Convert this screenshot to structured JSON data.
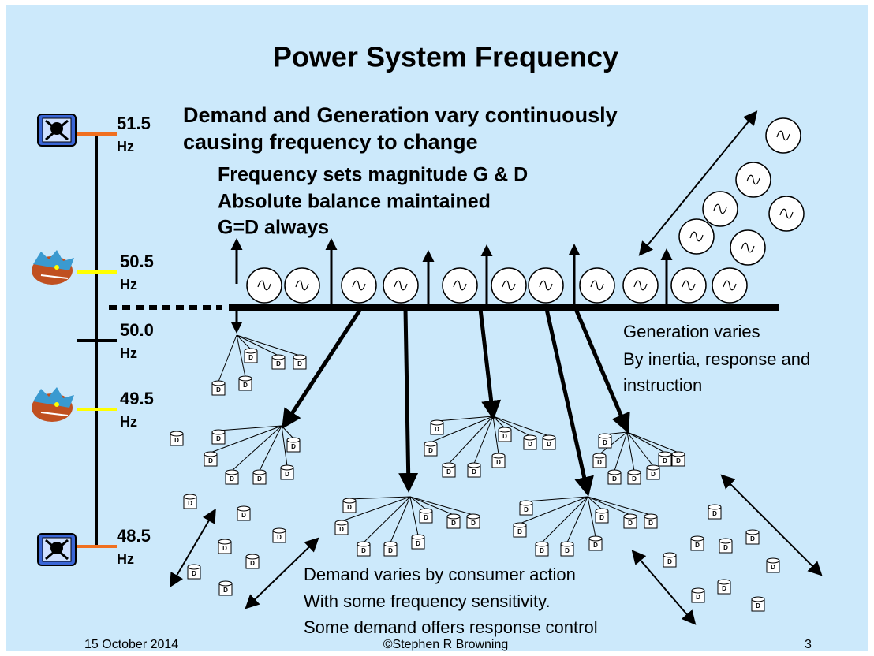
{
  "title": "Power System Frequency",
  "scale": [
    {
      "value": "51.5",
      "unit": "Hz"
    },
    {
      "value": "50.5",
      "unit": "Hz"
    },
    {
      "value": "50.0",
      "unit": "Hz"
    },
    {
      "value": "49.5",
      "unit": "Hz"
    },
    {
      "value": "48.5",
      "unit": "Hz"
    }
  ],
  "headline": [
    "Demand and Generation vary continuously",
    "causing frequency to change"
  ],
  "balance": [
    "Frequency sets magnitude G & D",
    "Absolute balance maintained",
    "G=D always"
  ],
  "generation_note": [
    "Generation varies",
    "By inertia, response and",
    "instruction"
  ],
  "demand_note": [
    "Demand varies by consumer action",
    "With some frequency sensitivity.",
    "Some demand offers response control"
  ],
  "demand_icon_label": "D",
  "footer": {
    "date": "15 October 2014",
    "author": "©Stephen R Browning",
    "page": "3"
  }
}
